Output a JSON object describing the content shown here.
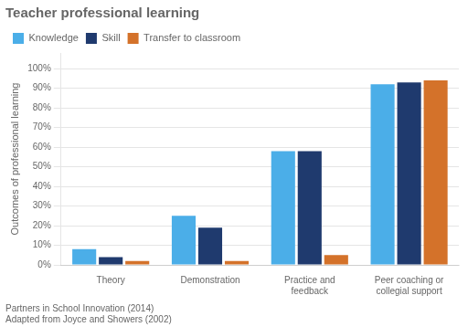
{
  "chart_data": {
    "type": "bar",
    "title": "Teacher professional learning",
    "ylabel": "Outcomes of professional learning",
    "categories": [
      "Theory",
      "Demonstration",
      "Practice and\nfeedback",
      "Peer coaching or\ncollegial support"
    ],
    "series": [
      {
        "name": "Knowledge",
        "color": "#4baee8",
        "values": [
          8,
          25,
          58,
          92
        ]
      },
      {
        "name": "Skill",
        "color": "#1f3a6e",
        "values": [
          4,
          19,
          58,
          93
        ]
      },
      {
        "name": "Transfer to classroom",
        "color": "#d4722a",
        "values": [
          2,
          2,
          5,
          94
        ]
      }
    ],
    "ylim": [
      0,
      108
    ],
    "yticks": [
      {
        "value": 0,
        "label": "0%"
      },
      {
        "value": 10,
        "label": "10%"
      },
      {
        "value": 20,
        "label": "20%"
      },
      {
        "value": 30,
        "label": "30%"
      },
      {
        "value": 40,
        "label": "40%"
      },
      {
        "value": 50,
        "label": "50%"
      },
      {
        "value": 60,
        "label": "60%"
      },
      {
        "value": 70,
        "label": "70%"
      },
      {
        "value": 80,
        "label": "80%"
      },
      {
        "value": 90,
        "label": "90%"
      },
      {
        "value": 100,
        "label": "100%"
      }
    ],
    "grid": true,
    "legend": "upper left",
    "annotations": [
      "Partners in School Innovation (2014)",
      "Adapted from Joyce and Showers (2002)"
    ]
  }
}
